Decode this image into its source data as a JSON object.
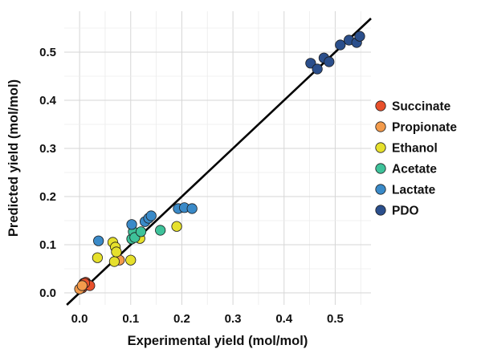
{
  "chart_data": {
    "type": "scatter",
    "xlabel": "Experimental yield (mol/mol)",
    "ylabel": "Predicted yield (mol/mol)",
    "xlim": [
      -0.03,
      0.57
    ],
    "ylim": [
      -0.025,
      0.585
    ],
    "xticks": [
      0.0,
      0.1,
      0.2,
      0.3,
      0.4,
      0.5
    ],
    "yticks": [
      0.0,
      0.1,
      0.2,
      0.3,
      0.4,
      0.5
    ],
    "xtick_labels": [
      "0.0",
      "0.1",
      "0.2",
      "0.3",
      "0.4",
      "0.5"
    ],
    "ytick_labels": [
      "0.0",
      "0.1",
      "0.2",
      "0.3",
      "0.4",
      "0.5"
    ],
    "grid": true,
    "legend_position": "right",
    "reference_line": {
      "slope": 1,
      "intercept": 0,
      "color": "#000000"
    },
    "series": [
      {
        "name": "Succinate",
        "color": "#e8502b",
        "points": [
          [
            0.005,
            0.01
          ],
          [
            0.008,
            0.02
          ],
          [
            0.01,
            0.015
          ],
          [
            0.012,
            0.022
          ],
          [
            0.015,
            0.018
          ],
          [
            0.02,
            0.015
          ],
          [
            0.01,
            0.02
          ]
        ]
      },
      {
        "name": "Propionate",
        "color": "#f39b4c",
        "points": [
          [
            0.0,
            0.008
          ],
          [
            0.005,
            0.015
          ],
          [
            0.078,
            0.068
          ]
        ]
      },
      {
        "name": "Ethanol",
        "color": "#e6e02c",
        "points": [
          [
            0.035,
            0.073
          ],
          [
            0.065,
            0.105
          ],
          [
            0.068,
            0.065
          ],
          [
            0.07,
            0.095
          ],
          [
            0.072,
            0.085
          ],
          [
            0.1,
            0.068
          ],
          [
            0.118,
            0.113
          ],
          [
            0.19,
            0.138
          ]
        ]
      },
      {
        "name": "Acetate",
        "color": "#3ec29a",
        "points": [
          [
            0.102,
            0.112
          ],
          [
            0.105,
            0.127
          ],
          [
            0.108,
            0.115
          ],
          [
            0.12,
            0.127
          ],
          [
            0.158,
            0.13
          ]
        ]
      },
      {
        "name": "Lactate",
        "color": "#3a8ac8",
        "points": [
          [
            0.037,
            0.108
          ],
          [
            0.102,
            0.142
          ],
          [
            0.128,
            0.148
          ],
          [
            0.135,
            0.155
          ],
          [
            0.14,
            0.16
          ],
          [
            0.193,
            0.175
          ],
          [
            0.205,
            0.177
          ],
          [
            0.22,
            0.175
          ]
        ]
      },
      {
        "name": "PDO",
        "color": "#2b4f8c",
        "points": [
          [
            0.452,
            0.477
          ],
          [
            0.465,
            0.465
          ],
          [
            0.478,
            0.488
          ],
          [
            0.488,
            0.48
          ],
          [
            0.51,
            0.515
          ],
          [
            0.527,
            0.525
          ],
          [
            0.542,
            0.52
          ],
          [
            0.548,
            0.533
          ]
        ]
      }
    ]
  }
}
